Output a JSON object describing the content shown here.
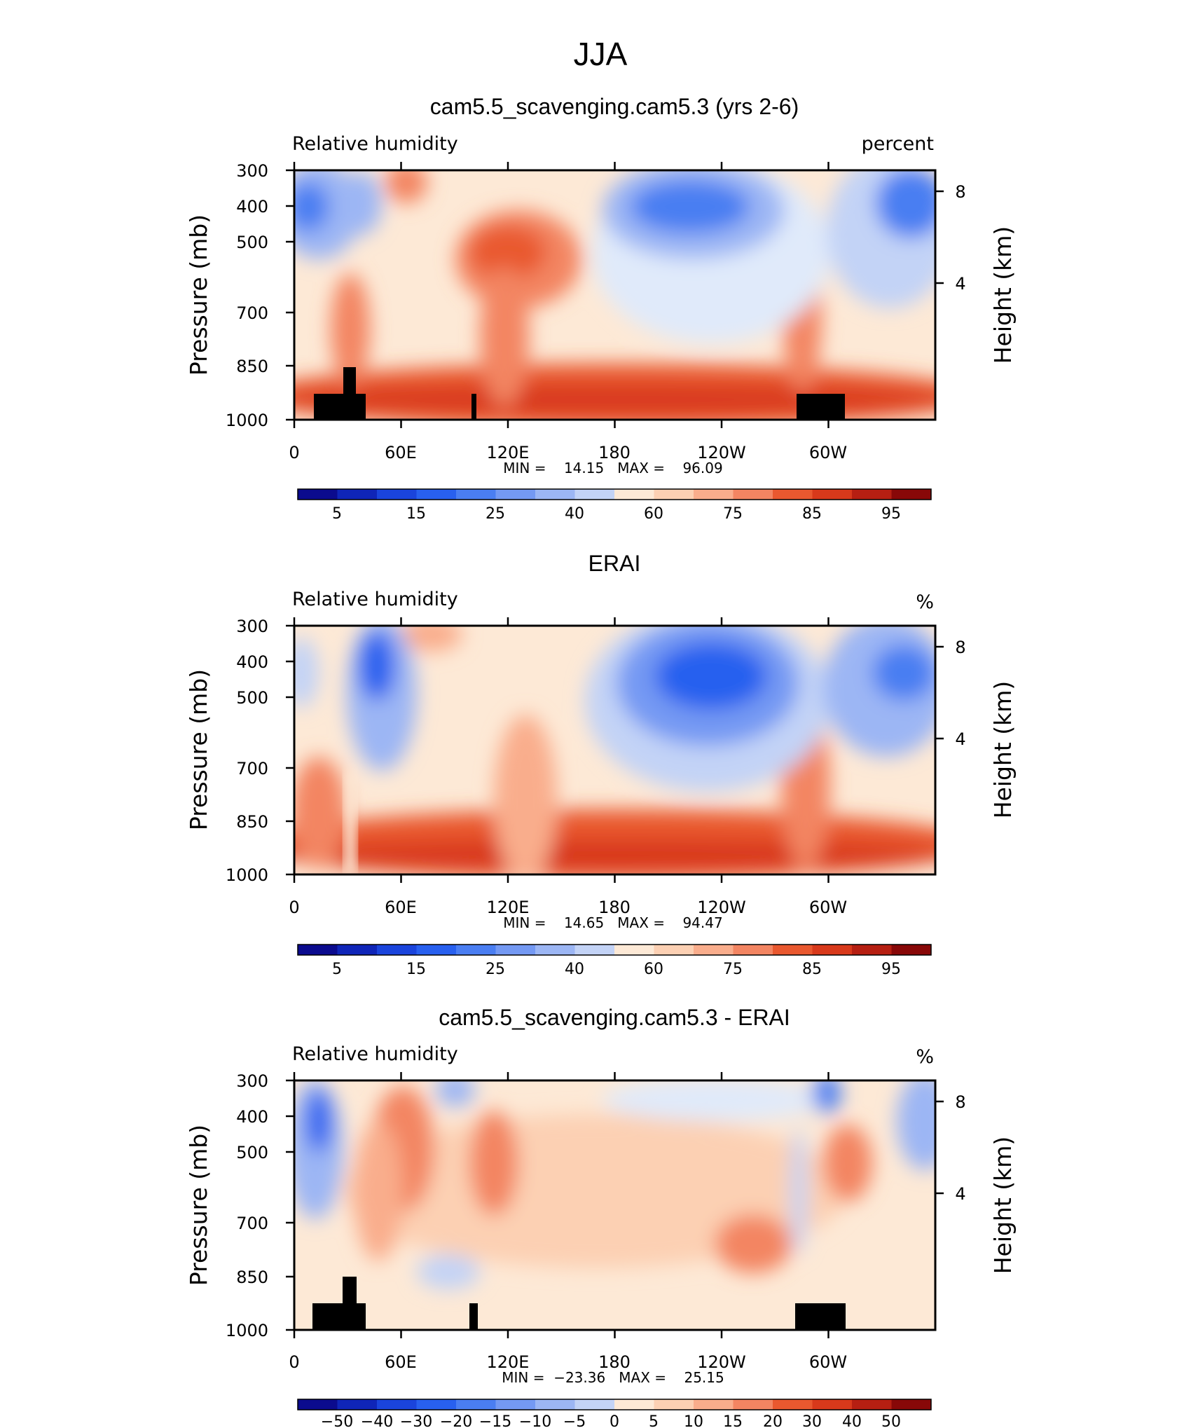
{
  "figure": {
    "title": "JJA"
  },
  "chart_data": [
    {
      "type": "heatmap",
      "title": "cam5.5_scavenging.cam5.3 (yrs 2-6)",
      "left_label": "Relative  humidity",
      "right_label": "percent",
      "ylabel": "Pressure  (mb)",
      "y2label": "Height  (km)",
      "x_ticks": [
        "0",
        "60E",
        "120E",
        "180",
        "120W",
        "60W"
      ],
      "y_ticks": [
        "300",
        "400",
        "500",
        "700",
        "850",
        "1000"
      ],
      "y2_ticks": [
        "8",
        "4"
      ],
      "stats": "MIN =    14.15   MAX =    96.09",
      "min": 14.15,
      "max": 96.09,
      "colorbar_labels": [
        "5",
        "15",
        "25",
        "40",
        "60",
        "75",
        "85",
        "95"
      ],
      "levels": [
        5,
        10,
        15,
        20,
        25,
        30,
        40,
        50,
        60,
        65,
        70,
        75,
        80,
        85,
        90,
        95
      ],
      "xlim": [
        0,
        360
      ],
      "ylim": [
        1000,
        300
      ]
    },
    {
      "type": "heatmap",
      "title": "ERAI",
      "left_label": "Relative  humidity",
      "right_label": "%",
      "ylabel": "Pressure  (mb)",
      "y2label": "Height  (km)",
      "x_ticks": [
        "0",
        "60E",
        "120E",
        "180",
        "120W",
        "60W"
      ],
      "y_ticks": [
        "300",
        "400",
        "500",
        "700",
        "850",
        "1000"
      ],
      "y2_ticks": [
        "8",
        "4"
      ],
      "stats": "MIN =    14.65   MAX =    94.47",
      "min": 14.65,
      "max": 94.47,
      "colorbar_labels": [
        "5",
        "15",
        "25",
        "40",
        "60",
        "75",
        "85",
        "95"
      ],
      "levels": [
        5,
        10,
        15,
        20,
        25,
        30,
        40,
        50,
        60,
        65,
        70,
        75,
        80,
        85,
        90,
        95
      ],
      "xlim": [
        0,
        360
      ],
      "ylim": [
        1000,
        300
      ]
    },
    {
      "type": "heatmap",
      "title": "cam5.5_scavenging.cam5.3 - ERAI",
      "left_label": "Relative  humidity",
      "right_label": "%",
      "ylabel": "Pressure  (mb)",
      "y2label": "Height  (km)",
      "x_ticks": [
        "0",
        "60E",
        "120E",
        "180",
        "120W",
        "60W"
      ],
      "y_ticks": [
        "300",
        "400",
        "500",
        "700",
        "850",
        "1000"
      ],
      "y2_ticks": [
        "8",
        "4"
      ],
      "stats": "MIN =  −23.36   MAX =    25.15",
      "min": -23.36,
      "max": 25.15,
      "colorbar_labels": [
        "−50",
        "−40",
        "−30",
        "−20",
        "−15",
        "−10",
        "−5",
        "0",
        "5",
        "10",
        "15",
        "20",
        "30",
        "40",
        "50"
      ],
      "levels": [
        -50,
        -40,
        -30,
        -20,
        -15,
        -10,
        -5,
        0,
        5,
        10,
        15,
        20,
        30,
        40,
        50
      ],
      "xlim": [
        0,
        360
      ],
      "ylim": [
        1000,
        300
      ]
    }
  ],
  "colors": {
    "seq_palette": [
      "#0b0b8e",
      "#0f25b8",
      "#1a44dc",
      "#2860ef",
      "#4a7ef2",
      "#7499f3",
      "#9cb6f4",
      "#c3d3f6",
      "#e0eafa",
      "#fde9d6",
      "#fcd0b3",
      "#f9ad8c",
      "#f38562",
      "#e9582f",
      "#d8391b",
      "#b61f12",
      "#880808"
    ],
    "diff_palette": [
      "#0b0b8e",
      "#0f25b8",
      "#1a44dc",
      "#2860ef",
      "#4a7ef2",
      "#7499f3",
      "#9cb6f4",
      "#c3d3f6",
      "#fde9d6",
      "#fcd0b3",
      "#f9ad8c",
      "#f38562",
      "#e9582f",
      "#d8391b",
      "#b61f12",
      "#880808"
    ],
    "topography": "#000000"
  }
}
